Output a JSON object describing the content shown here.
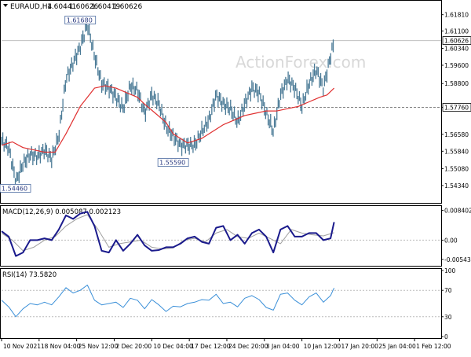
{
  "chart_data": [
    {
      "panel": "price",
      "type": "ohlc",
      "header": {
        "symbol": "EURAUD,H4",
        "open": "1.60441",
        "high": "1.60626",
        "low": "1.60419",
        "close": "1.60626"
      },
      "watermark": "ActionForex.com",
      "ylim": [
        1.5365,
        1.6235
      ],
      "yticks": [
        "1.61810",
        "1.61100",
        "1.60340",
        "1.59600",
        "1.58800",
        "1.57760",
        "1.56580",
        "1.55840",
        "1.55080",
        "1.54340"
      ],
      "price_marker": "1.60626",
      "hlines": [
        {
          "value": 1.6068,
          "color": "#c0c0c0",
          "style": "solid"
        },
        {
          "value": 1.5776,
          "color": "#808080",
          "style": "dashed",
          "marker": "1.57760"
        }
      ],
      "annotations": [
        {
          "text": "1.61680",
          "x": 44,
          "y": 1.6168
        },
        {
          "text": "1.55590",
          "x": 96,
          "y": 1.5559
        },
        {
          "text": "1.54460",
          "x": 4,
          "y": 1.5446
        }
      ],
      "series": [
        {
          "type": "close-path",
          "color": "#4a7a96",
          "x": [
            0,
            4,
            8,
            12,
            16,
            20,
            24,
            28,
            32,
            36,
            40,
            44,
            48,
            52,
            56,
            60,
            64,
            68,
            72,
            76,
            80,
            84,
            88,
            92,
            96,
            100,
            104,
            108,
            112,
            116,
            120,
            124,
            128,
            132,
            136,
            140,
            144,
            148,
            152,
            156,
            160,
            164,
            168,
            172,
            176,
            180,
            184,
            186
          ],
          "y": [
            1.563,
            1.56,
            1.545,
            1.553,
            1.557,
            1.556,
            1.559,
            1.555,
            1.565,
            1.59,
            1.597,
            1.604,
            1.614,
            1.6,
            1.588,
            1.586,
            1.582,
            1.577,
            1.587,
            1.585,
            1.575,
            1.583,
            1.579,
            1.569,
            1.565,
            1.561,
            1.561,
            1.561,
            1.567,
            1.572,
            1.583,
            1.579,
            1.577,
            1.571,
            1.579,
            1.586,
            1.584,
            1.575,
            1.567,
            1.583,
            1.59,
            1.586,
            1.578,
            1.588,
            1.594,
            1.586,
            1.6,
            1.6063
          ]
        },
        {
          "type": "moving-average",
          "color": "#e03030",
          "x": [
            0,
            6,
            12,
            18,
            24,
            30,
            36,
            40,
            44,
            48,
            52,
            58,
            64,
            70,
            76,
            80,
            86,
            92,
            96,
            100,
            104,
            108,
            112,
            118,
            124,
            130,
            136,
            142,
            148,
            154,
            160,
            166,
            172,
            178,
            182,
            186
          ],
          "y": [
            1.561,
            1.5625,
            1.56,
            1.559,
            1.558,
            1.558,
            1.566,
            1.572,
            1.578,
            1.582,
            1.586,
            1.587,
            1.586,
            1.584,
            1.582,
            1.579,
            1.575,
            1.571,
            1.566,
            1.564,
            1.562,
            1.563,
            1.564,
            1.567,
            1.57,
            1.572,
            1.574,
            1.575,
            1.576,
            1.576,
            1.577,
            1.578,
            1.58,
            1.582,
            1.583,
            1.586
          ]
        }
      ]
    },
    {
      "panel": "macd",
      "type": "line",
      "header": "MACD(12,26,9) 0.005087 0.002123",
      "ylim": [
        -0.0068,
        0.0092
      ],
      "yticks": [
        "0.008402",
        "0.00",
        "-0.005436"
      ],
      "series": [
        {
          "name": "MACD",
          "color": "#1a1a8c",
          "x": [
            0,
            4,
            8,
            12,
            16,
            20,
            24,
            28,
            32,
            36,
            40,
            44,
            48,
            52,
            56,
            60,
            64,
            68,
            72,
            76,
            80,
            84,
            88,
            92,
            96,
            100,
            104,
            108,
            112,
            116,
            120,
            124,
            128,
            132,
            136,
            140,
            144,
            148,
            152,
            156,
            160,
            164,
            168,
            172,
            176,
            180,
            184,
            186
          ],
          "y": [
            0.0025,
            0.001,
            -0.0045,
            -0.0035,
            0.0,
            0.0,
            0.0005,
            0.0,
            0.003,
            0.007,
            0.006,
            0.0075,
            0.008,
            0.004,
            -0.003,
            -0.0035,
            0.0,
            -0.003,
            -0.001,
            0.0015,
            -0.0015,
            -0.003,
            -0.0028,
            -0.002,
            -0.002,
            -0.001,
            0.0005,
            0.001,
            -0.0005,
            -0.001,
            0.0035,
            0.004,
            0.0,
            0.0015,
            -0.001,
            0.002,
            0.003,
            0.001,
            -0.0035,
            0.003,
            0.004,
            0.001,
            0.001,
            0.002,
            0.002,
            0.0,
            0.0005,
            0.0051
          ]
        },
        {
          "name": "Signal",
          "color": "#a0a0a0",
          "x": [
            0,
            6,
            12,
            18,
            24,
            30,
            36,
            42,
            48,
            54,
            60,
            66,
            72,
            78,
            84,
            90,
            96,
            102,
            108,
            114,
            120,
            126,
            132,
            138,
            144,
            150,
            156,
            162,
            168,
            174,
            180,
            186
          ],
          "y": [
            0.002,
            0.0,
            -0.003,
            -0.002,
            0.0,
            0.001,
            0.004,
            0.006,
            0.0072,
            0.003,
            -0.002,
            -0.001,
            -0.0005,
            0.0,
            -0.002,
            -0.0025,
            -0.0022,
            0.0,
            0.0005,
            -0.0005,
            0.002,
            0.003,
            0.001,
            0.0005,
            0.002,
            0.0005,
            -0.001,
            0.003,
            0.002,
            0.0015,
            0.0012,
            0.0021
          ]
        }
      ]
    },
    {
      "panel": "rsi",
      "type": "line",
      "header": "RSI(14) 73.5820",
      "ylim": [
        0,
        100
      ],
      "yticks": [
        "100",
        "70",
        "30",
        "0"
      ],
      "levels": [
        70,
        30
      ],
      "series": [
        {
          "name": "RSI",
          "color": "#3a8fd8",
          "x": [
            0,
            4,
            8,
            12,
            16,
            20,
            24,
            28,
            32,
            36,
            40,
            44,
            48,
            52,
            56,
            60,
            64,
            68,
            72,
            76,
            80,
            84,
            88,
            92,
            96,
            100,
            104,
            108,
            112,
            116,
            120,
            124,
            128,
            132,
            136,
            140,
            144,
            148,
            152,
            156,
            160,
            164,
            168,
            172,
            176,
            180,
            184,
            186
          ],
          "y": [
            55,
            45,
            30,
            42,
            50,
            48,
            52,
            48,
            60,
            74,
            66,
            70,
            78,
            55,
            48,
            50,
            52,
            44,
            58,
            55,
            42,
            56,
            48,
            38,
            46,
            45,
            50,
            52,
            56,
            55,
            64,
            50,
            52,
            45,
            58,
            62,
            56,
            44,
            40,
            64,
            66,
            55,
            48,
            60,
            66,
            52,
            62,
            73.58
          ]
        }
      ]
    },
    {
      "panel": "xaxis",
      "type": "axis",
      "ticks": [
        {
          "label": "10 Nov 2021",
          "x": 0
        },
        {
          "label": "18 Nov 04:00",
          "x": 21
        },
        {
          "label": "25 Nov 12:00",
          "x": 42
        },
        {
          "label": "2 Dec 20:00",
          "x": 63
        },
        {
          "label": "10 Dec 04:00",
          "x": 84
        },
        {
          "label": "17 Dec 12:00",
          "x": 105
        },
        {
          "label": "24 Dec 20:00",
          "x": 126
        },
        {
          "label": "3 Jan 04:00",
          "x": 147
        },
        {
          "label": "10 Jan 12:00",
          "x": 168
        },
        {
          "label": "17 Jan 20:00",
          "x": 189
        },
        {
          "label": "25 Jan 04:00",
          "x": 210
        },
        {
          "label": "1 Feb 12:00",
          "x": 231
        }
      ],
      "xlim": [
        0,
        245
      ]
    }
  ]
}
